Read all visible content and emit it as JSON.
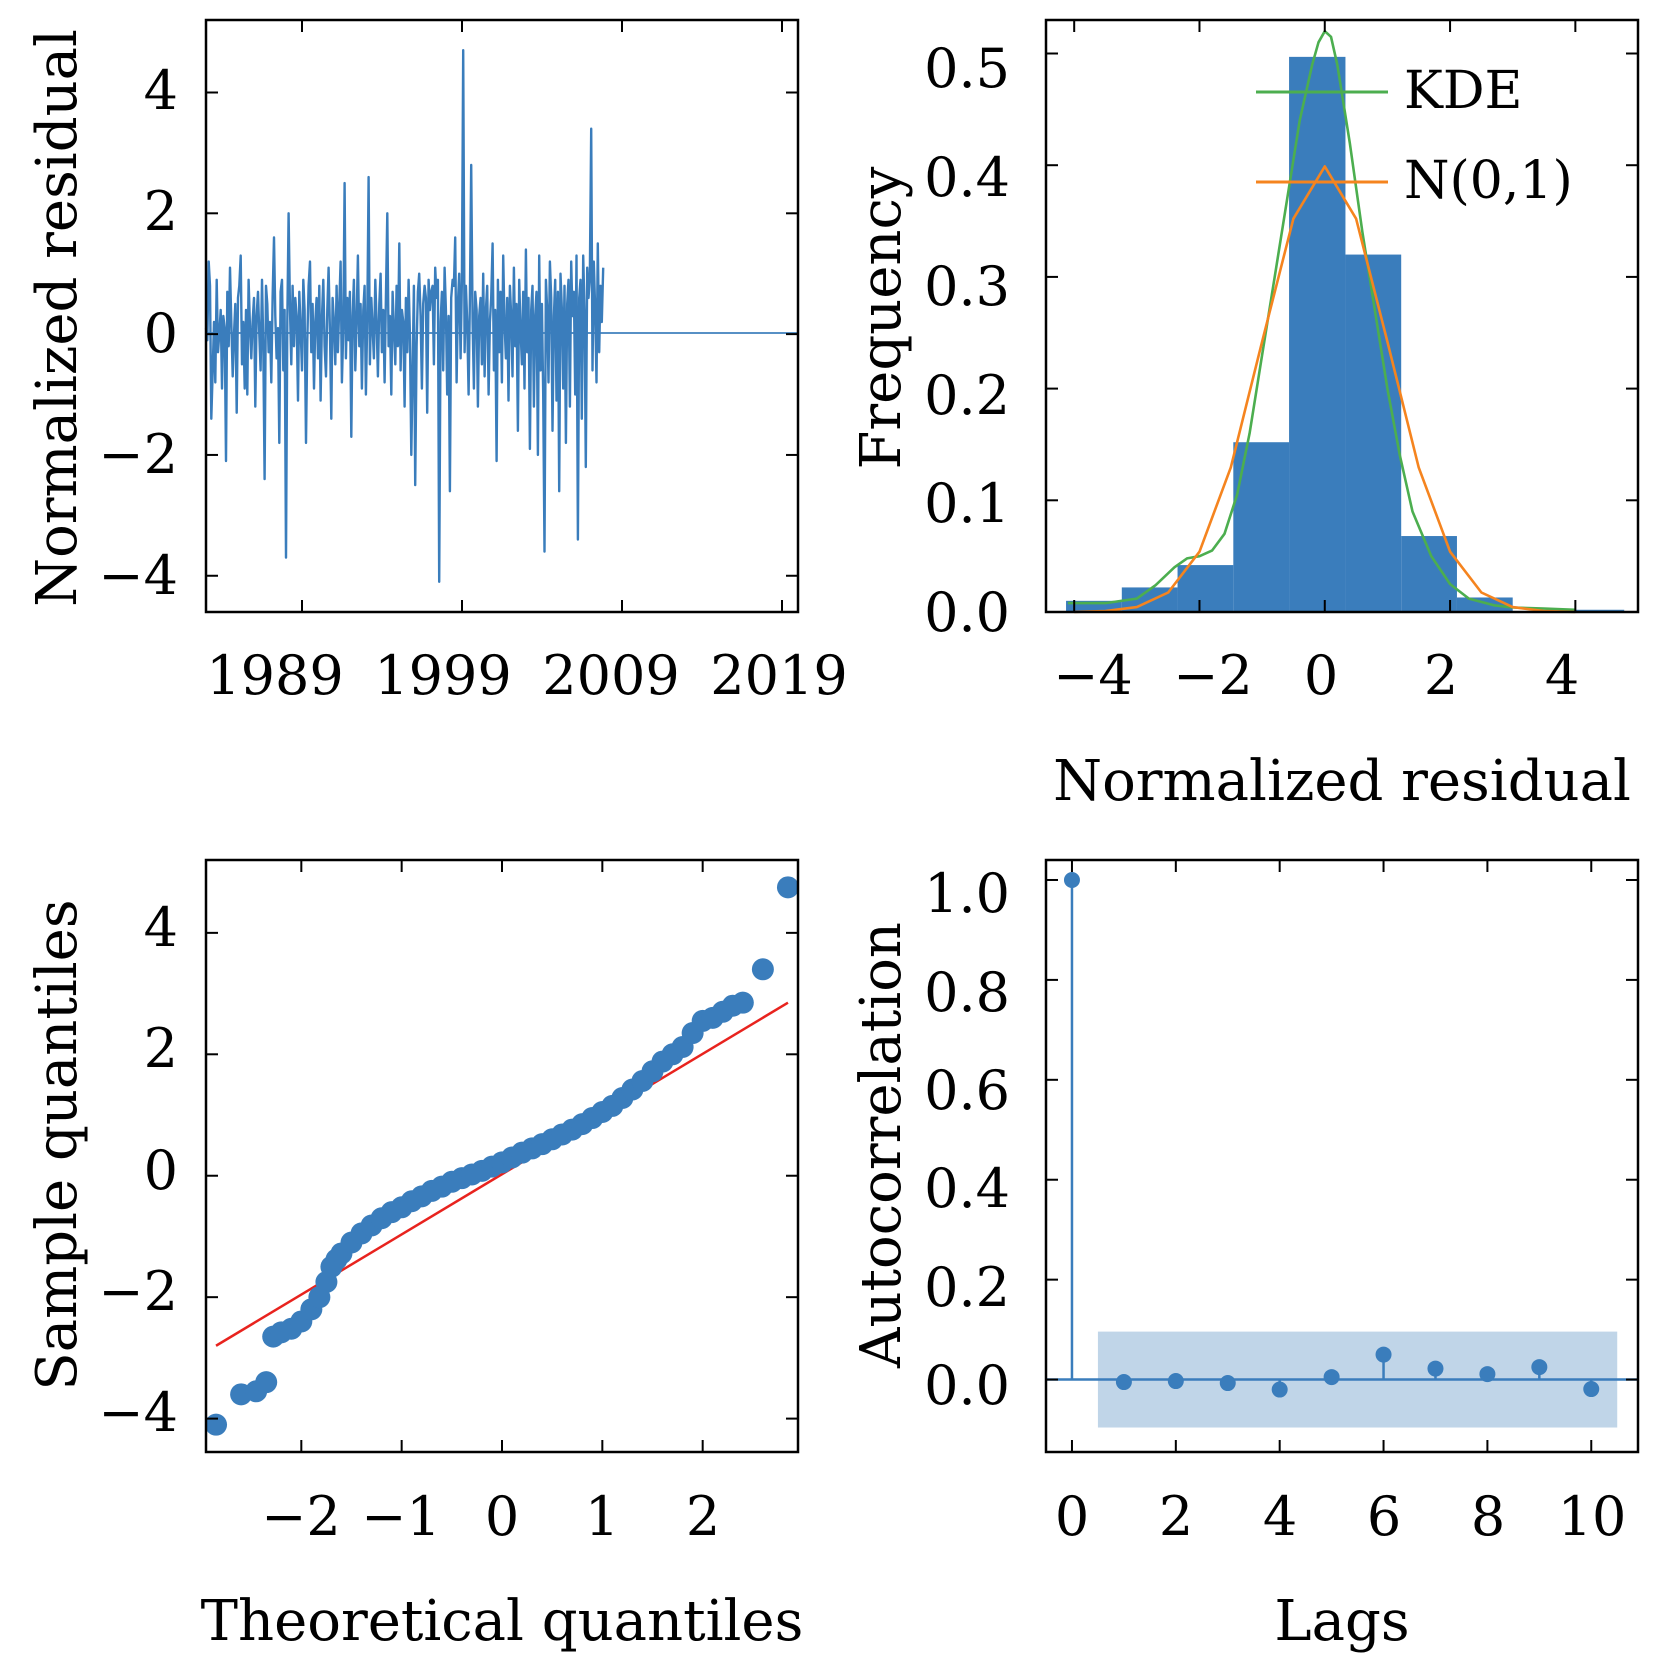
{
  "colors": {
    "blue": "#3a7dbc",
    "green": "#4cae4f",
    "orange": "#f5841f",
    "red": "#e8231e",
    "band": "#c0d5e8"
  },
  "chart_data": [
    {
      "id": "residuals",
      "type": "line",
      "title": "",
      "xlabel": "",
      "ylabel": "Normalized residual",
      "xlim": [
        1983,
        2020
      ],
      "ylim": [
        -4.6,
        5.2
      ],
      "xticks": [
        1989,
        1999,
        2009,
        2019
      ],
      "xtick_labels": [
        "1989",
        "1999",
        "2009",
        "2019"
      ],
      "yticks": [
        -4,
        -2,
        0,
        2,
        4
      ],
      "ytick_labels": [
        "−4",
        "−2",
        "0",
        "2",
        "4"
      ],
      "zero_line": 0,
      "series": [
        {
          "name": "Normalized residual",
          "sample_start": 1983.0,
          "sample_step": 0.0833,
          "values": [
            0.1,
            -0.1,
            1.2,
            0.8,
            -1.4,
            -0.6,
            0.2,
            -0.8,
            0.9,
            -0.3,
            0.0,
            0.4,
            -0.9,
            0.3,
            0.1,
            -2.1,
            0.7,
            -0.2,
            1.1,
            0.2,
            -0.7,
            0.0,
            0.5,
            -1.3,
            0.6,
            0.8,
            1.3,
            -0.5,
            0.2,
            -0.9,
            0.4,
            -1.0,
            0.9,
            0.1,
            -0.4,
            0.2,
            0.6,
            -1.2,
            0.3,
            0.7,
            0.0,
            -0.6,
            0.9,
            -0.2,
            -2.4,
            0.8,
            0.5,
            -0.3,
            0.2,
            -0.8,
            0.6,
            1.6,
            0.3,
            -0.4,
            0.1,
            -1.8,
            0.7,
            0.9,
            -0.6,
            0.4,
            -3.7,
            0.2,
            2.0,
            0.4,
            -0.5,
            0.8,
            -0.2,
            0.6,
            0.3,
            -1.1,
            0.7,
            0.1,
            -0.6,
            0.9,
            0.4,
            -1.8,
            -0.1,
            0.8,
            1.2,
            -0.3,
            0.5,
            -0.9,
            0.2,
            0.6,
            -0.4,
            0.8,
            -1.1,
            0.3,
            0.9,
            -0.2,
            -0.7,
            0.4,
            1.1,
            0.0,
            -1.4,
            0.6,
            0.2,
            -0.5,
            0.8,
            -0.3,
            0.5,
            1.2,
            -0.8,
            0.1,
            2.5,
            -0.4,
            0.6,
            -0.1,
            0.7,
            -1.7,
            0.3,
            0.9,
            -0.6,
            0.2,
            1.3,
            -0.2,
            0.5,
            -0.9,
            0.4,
            0.8,
            -1.0,
            0.3,
            2.6,
            -0.5,
            0.6,
            0.1,
            -0.4,
            0.9,
            0.2,
            -0.7,
            0.5,
            1.0,
            -0.3,
            0.4,
            -0.8,
            0.6,
            2.0,
            -0.2,
            0.3,
            -1.0,
            0.7,
            0.1,
            -0.5,
            0.8,
            -0.2,
            1.5,
            -0.6,
            0.4,
            0.2,
            -1.2,
            0.6,
            -0.3,
            0.9,
            0.0,
            -2.0,
            -0.6,
            0.8,
            -2.5,
            -0.2,
            0.7,
            1.0,
            0.3,
            -0.9,
            0.5,
            0.8,
            0.6,
            -1.3,
            0.9,
            0.4,
            0.7,
            0.8,
            -0.5,
            1.1,
            0.6,
            0.9,
            -4.1,
            0.2,
            0.7,
            -0.6,
            1.1,
            0.4,
            -1.0,
            0.3,
            -2.6,
            0.6,
            0.9,
            0.8,
            1.6,
            -0.8,
            0.5,
            1.0,
            -0.4,
            0.9,
            4.7,
            -0.3,
            0.8,
            0.2,
            -1.0,
            0.6,
            2.8,
            0.2,
            -0.9,
            0.7,
            0.4,
            -1.2,
            0.3,
            0.6,
            -0.5,
            1.0,
            -0.7,
            0.4,
            0.8,
            -1.0,
            0.2,
            0.6,
            1.5,
            -0.6,
            0.4,
            -2.1,
            0.9,
            -0.3,
            0.7,
            -0.8,
            1.3,
            0.2,
            -0.4,
            0.6,
            -1.1,
            0.8,
            0.3,
            -0.7,
            1.1,
            -0.2,
            0.5,
            -1.6,
            0.9,
            0.1,
            -0.5,
            0.7,
            -0.9,
            1.4,
            -0.3,
            0.6,
            -1.9,
            0.4,
            0.8,
            -1.2,
            0.3,
            0.7,
            -2.0,
            1.3,
            -0.6,
            0.5,
            -1.0,
            -3.6,
            0.9,
            0.4,
            -0.8,
            1.2,
            0.6,
            -1.6,
            0.3,
            0.9,
            -1.1,
            0.7,
            -2.6,
            1.0,
            0.4,
            -0.9,
            0.8,
            -1.8,
            0.5,
            0.9,
            -1.2,
            1.2,
            0.3,
            0.7,
            -1.0,
            1.3,
            -3.4,
            0.6,
            0.9,
            -1.4,
            1.3,
            0.4,
            -2.2,
            1.1,
            0.6,
            0.9,
            3.4,
            -0.6,
            1.2,
            0.4,
            -0.8,
            1.5,
            -0.3,
            0.8,
            0.2,
            1.1
          ]
        }
      ]
    },
    {
      "id": "histogram",
      "type": "bar",
      "title": "",
      "xlabel": "Normalized residual",
      "ylabel": "Frequency",
      "xlim": [
        -4.45,
        5.0
      ],
      "ylim": [
        0,
        0.53
      ],
      "xticks": [
        -4,
        -2,
        0,
        2,
        4
      ],
      "xtick_labels": [
        "−4",
        "−2",
        "0",
        "2",
        "4"
      ],
      "yticks": [
        0.0,
        0.1,
        0.2,
        0.3,
        0.4,
        0.5
      ],
      "ytick_labels": [
        "0.0",
        "0.1",
        "0.2",
        "0.3",
        "0.4",
        "0.5"
      ],
      "bin_edges": [
        -4.13,
        -3.24,
        -2.35,
        -1.46,
        -0.57,
        0.33,
        1.22,
        2.11,
        3.0,
        3.89,
        4.78
      ],
      "values": [
        0.01,
        0.022,
        0.042,
        0.152,
        0.497,
        0.32,
        0.068,
        0.013,
        0.0,
        0.002
      ],
      "legend": {
        "placement": "top-right"
      },
      "series": [
        {
          "name": "KDE",
          "x": [
            -4.1,
            -3.5,
            -3.0,
            -2.7,
            -2.4,
            -2.2,
            -2.0,
            -1.8,
            -1.6,
            -1.4,
            -1.2,
            -1.0,
            -0.8,
            -0.6,
            -0.4,
            -0.2,
            -0.1,
            0.0,
            0.1,
            0.2,
            0.4,
            0.6,
            0.8,
            1.0,
            1.2,
            1.4,
            1.7,
            2.0,
            2.3,
            2.7,
            3.0,
            3.5,
            4.0
          ],
          "values": [
            0.008,
            0.008,
            0.012,
            0.024,
            0.04,
            0.048,
            0.05,
            0.055,
            0.07,
            0.105,
            0.16,
            0.23,
            0.3,
            0.37,
            0.44,
            0.49,
            0.51,
            0.52,
            0.515,
            0.49,
            0.42,
            0.34,
            0.27,
            0.2,
            0.14,
            0.09,
            0.05,
            0.025,
            0.012,
            0.006,
            0.004,
            0.003,
            0.002
          ]
        },
        {
          "name": "N(0,1)",
          "x": [
            -4.0,
            -3.5,
            -3.0,
            -2.5,
            -2.0,
            -1.5,
            -1.0,
            -0.5,
            0.0,
            0.5,
            1.0,
            1.5,
            2.0,
            2.5,
            3.0,
            3.5,
            4.0
          ],
          "values": [
            0.0001,
            0.0009,
            0.0044,
            0.0175,
            0.054,
            0.1295,
            0.242,
            0.3521,
            0.3989,
            0.3521,
            0.242,
            0.1295,
            0.054,
            0.0175,
            0.0044,
            0.0009,
            0.0001
          ]
        }
      ]
    },
    {
      "id": "qqplot",
      "type": "scatter",
      "title": "",
      "xlabel": "Theoretical quantiles",
      "ylabel": "Sample quantiles",
      "xlim": [
        -2.95,
        2.95
      ],
      "ylim": [
        -4.55,
        5.2
      ],
      "xticks": [
        -2,
        -1,
        0,
        1,
        2
      ],
      "xtick_labels": [
        "−2",
        "−1",
        "0",
        "1",
        "2"
      ],
      "yticks": [
        -4,
        -2,
        0,
        2,
        4
      ],
      "ytick_labels": [
        "−4",
        "−2",
        "0",
        "2",
        "4"
      ],
      "reference_line": {
        "x": [
          -2.85,
          2.85
        ],
        "y": [
          -2.8,
          2.85
        ]
      },
      "x": [
        -2.85,
        -2.6,
        -2.45,
        -2.35,
        -2.28,
        -2.2,
        -2.1,
        -2.0,
        -1.9,
        -1.82,
        -1.75,
        -1.7,
        -1.65,
        -1.6,
        -1.5,
        -1.4,
        -1.3,
        -1.2,
        -1.1,
        -1.0,
        -0.9,
        -0.8,
        -0.7,
        -0.6,
        -0.5,
        -0.4,
        -0.3,
        -0.2,
        -0.1,
        0.0,
        0.1,
        0.2,
        0.3,
        0.4,
        0.5,
        0.6,
        0.7,
        0.8,
        0.9,
        1.0,
        1.1,
        1.2,
        1.3,
        1.4,
        1.5,
        1.6,
        1.7,
        1.8,
        1.9,
        2.0,
        2.1,
        2.2,
        2.3,
        2.4,
        2.6,
        2.85
      ],
      "y": [
        -4.1,
        -3.6,
        -3.55,
        -3.4,
        -2.65,
        -2.58,
        -2.52,
        -2.4,
        -2.2,
        -2.0,
        -1.75,
        -1.5,
        -1.38,
        -1.28,
        -1.1,
        -0.95,
        -0.82,
        -0.7,
        -0.6,
        -0.52,
        -0.42,
        -0.34,
        -0.25,
        -0.18,
        -0.1,
        -0.04,
        0.02,
        0.08,
        0.15,
        0.22,
        0.3,
        0.38,
        0.45,
        0.52,
        0.6,
        0.68,
        0.76,
        0.85,
        0.95,
        1.05,
        1.15,
        1.28,
        1.42,
        1.56,
        1.72,
        1.88,
        2.0,
        2.12,
        2.35,
        2.55,
        2.6,
        2.7,
        2.8,
        2.85,
        3.4,
        4.75
      ]
    },
    {
      "id": "acf",
      "type": "scatter",
      "title": "",
      "xlabel": "Lags",
      "ylabel": "Autocorrelation",
      "xlim": [
        -0.5,
        10.9
      ],
      "ylim": [
        -0.145,
        1.04
      ],
      "xticks": [
        0,
        2,
        4,
        6,
        8,
        10
      ],
      "xtick_labels": [
        "0",
        "2",
        "4",
        "6",
        "8",
        "10"
      ],
      "yticks": [
        0.0,
        0.2,
        0.4,
        0.6,
        0.8,
        1.0
      ],
      "ytick_labels": [
        "0.0",
        "0.2",
        "0.4",
        "0.6",
        "0.8",
        "1.0"
      ],
      "confidence_band": {
        "x": [
          0.5,
          10.5
        ],
        "y": [
          -0.096,
          0.096
        ]
      },
      "lags": [
        0,
        1,
        2,
        3,
        4,
        5,
        6,
        7,
        8,
        9,
        10
      ],
      "values": [
        1.0,
        -0.005,
        -0.003,
        -0.007,
        -0.02,
        0.005,
        0.05,
        0.022,
        0.011,
        0.025,
        -0.019
      ]
    }
  ]
}
